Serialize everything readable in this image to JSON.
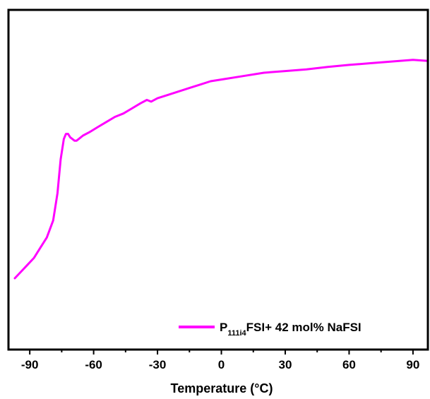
{
  "chart_data": {
    "type": "line",
    "title": "",
    "xlabel": "Temperature (°C)",
    "ylabel": "",
    "xlim": [
      -100,
      97
    ],
    "ylim": [
      0,
      100
    ],
    "x_ticks": [
      -90,
      -60,
      -30,
      0,
      30,
      60,
      90
    ],
    "x_tick_labels": [
      "-90",
      "-60",
      "-30",
      "0",
      "30",
      "60",
      "90"
    ],
    "grid": false,
    "legend": "bottom-right",
    "series": [
      {
        "name_main": "P",
        "name_sub": "111i4",
        "name_rest": "FSI+ 42 mol% NaFSI",
        "color": "#FF00FF",
        "x": [
          -97,
          -94,
          -91,
          -88,
          -85,
          -82,
          -79,
          -77,
          -75.5,
          -74,
          -73,
          -72,
          -71,
          -70,
          -69,
          -68,
          -67,
          -65,
          -62,
          -58,
          -54,
          -50,
          -46,
          -42,
          -38,
          -35,
          -33,
          -30,
          -25,
          -20,
          -15,
          -10,
          -5,
          0,
          10,
          20,
          30,
          40,
          50,
          60,
          70,
          80,
          90,
          97
        ],
        "y": [
          21,
          23,
          25,
          27,
          30,
          33,
          38,
          46,
          56,
          62,
          63.5,
          63.5,
          62.5,
          62,
          61.5,
          61.5,
          62,
          63,
          64,
          65.5,
          67,
          68.5,
          69.5,
          71,
          72.5,
          73.5,
          73,
          74,
          75,
          76,
          77,
          78,
          79,
          79.5,
          80.5,
          81.5,
          82,
          82.5,
          83.2,
          83.8,
          84.3,
          84.8,
          85.3,
          85.0
        ]
      }
    ]
  }
}
